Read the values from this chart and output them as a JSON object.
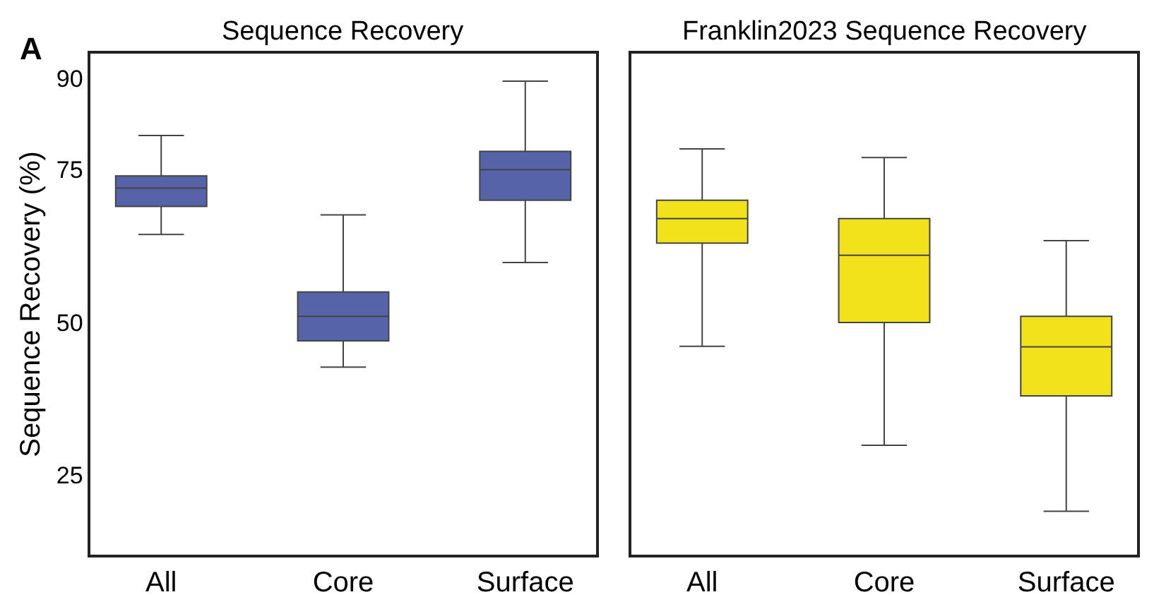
{
  "chart_data": [
    {
      "type": "box",
      "title": "Sequence Recovery",
      "ylabel": "Sequence Recovery (%)",
      "annotations": [
        "A"
      ],
      "categories": [
        "All",
        "Core",
        "Surface"
      ],
      "color": "#5763a8",
      "boxes": [
        {
          "low": 64.4,
          "q1": 69,
          "median": 72,
          "q3": 74,
          "high": 80.6
        },
        {
          "low": 42.7,
          "q1": 47,
          "median": 51,
          "q3": 55,
          "high": 67.6
        },
        {
          "low": 59.8,
          "q1": 70,
          "median": 75,
          "q3": 78,
          "high": 89.5
        }
      ],
      "ylim": [
        12,
        94
      ],
      "yticks": [
        25,
        50,
        75,
        90
      ]
    },
    {
      "type": "box",
      "title": "Franklin2023 Sequence Recovery",
      "categories": [
        "All",
        "Core",
        "Surface"
      ],
      "color": "#f2e21c",
      "boxes": [
        {
          "low": 46.1,
          "q1": 63,
          "median": 67,
          "q3": 70,
          "high": 78.4
        },
        {
          "low": 29.9,
          "q1": 50,
          "median": 61,
          "q3": 67,
          "high": 77
        },
        {
          "low": 19.1,
          "q1": 38,
          "median": 46,
          "q3": 51,
          "high": 63.4
        }
      ],
      "ylim": [
        12,
        94
      ],
      "yticks": [
        25,
        50,
        75,
        90
      ],
      "tick_labels": "x"
    }
  ]
}
